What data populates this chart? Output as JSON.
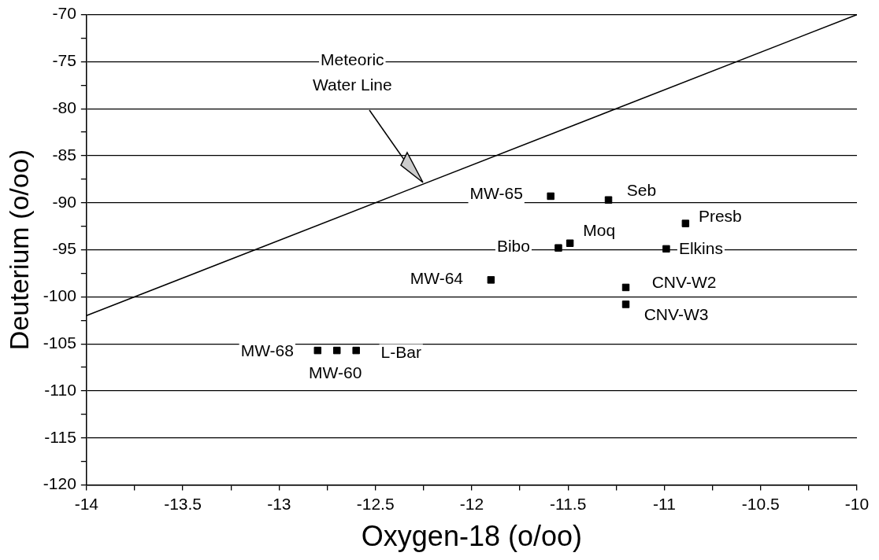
{
  "chart_data": {
    "type": "scatter",
    "xlabel": "Oxygen-18 (o/oo)",
    "ylabel": "Deuterium (o/oo)",
    "xlim": [
      -14,
      -10
    ],
    "xticks": [
      -14,
      {
        "value": -13.75,
        "label": null
      },
      -13.5,
      {
        "value": -13.25,
        "label": null
      },
      -13,
      {
        "value": -12.75,
        "label": null
      },
      -12.5,
      {
        "value": -12.25,
        "label": null
      },
      -12,
      {
        "value": -11.75,
        "label": null
      },
      -11.5,
      {
        "value": -11.25,
        "label": null
      },
      -11,
      {
        "value": -10.75,
        "label": null
      },
      -10.5,
      {
        "value": -10.25,
        "label": null
      },
      -10
    ],
    "ylim": [
      -120,
      -70
    ],
    "yticks": [
      -120,
      {
        "value": -117.5,
        "label": null
      },
      -115,
      {
        "value": -112.5,
        "label": null
      },
      -110,
      {
        "value": -107.5,
        "label": null
      },
      -105,
      {
        "value": -102.5,
        "label": null
      },
      -100,
      {
        "value": -97.5,
        "label": null
      },
      -95,
      {
        "value": -92.5,
        "label": null
      },
      -90,
      {
        "value": -87.5,
        "label": null
      },
      -85,
      {
        "value": -82.5,
        "label": null
      },
      -80,
      {
        "value": -77.5,
        "label": null
      },
      -75,
      {
        "value": -72.5,
        "label": null
      },
      -70
    ],
    "grid": "y",
    "legend": false,
    "marker": "square",
    "series": [
      {
        "name": "MW-65",
        "color": "#000000",
        "x": [
          -11.59
        ],
        "values": [
          -89.3
        ]
      },
      {
        "name": "Seb",
        "color": "#000000",
        "x": [
          -11.29
        ],
        "values": [
          -89.7
        ]
      },
      {
        "name": "Presb",
        "color": "#000000",
        "x": [
          -10.89
        ],
        "values": [
          -92.2
        ]
      },
      {
        "name": "Moq",
        "color": "#000000",
        "x": [
          -11.49
        ],
        "values": [
          -94.3
        ]
      },
      {
        "name": "Bibo",
        "color": "#000000",
        "x": [
          -11.55
        ],
        "values": [
          -94.8
        ]
      },
      {
        "name": "Elkins",
        "color": "#000000",
        "x": [
          -10.99
        ],
        "values": [
          -94.9
        ]
      },
      {
        "name": "MW-64",
        "color": "#000000",
        "x": [
          -11.9
        ],
        "values": [
          -98.2
        ]
      },
      {
        "name": "CNV-W2",
        "color": "#000000",
        "x": [
          -11.2
        ],
        "values": [
          -99
        ]
      },
      {
        "name": "CNV-W3",
        "color": "#000000",
        "x": [
          -11.2
        ],
        "values": [
          -100.8
        ]
      },
      {
        "name": "MW-68",
        "color": "#000000",
        "x": [
          -12.8
        ],
        "values": [
          -105.7
        ]
      },
      {
        "name": "MW-60",
        "color": "#000000",
        "x": [
          -12.7
        ],
        "values": [
          -105.7
        ]
      },
      {
        "name": "L-Bar",
        "color": "#000000",
        "x": [
          -12.6
        ],
        "values": [
          -105.7
        ]
      },
      {
        "type": "line",
        "color": "#000000",
        "marker": "none",
        "x": [
          -14,
          -10
        ],
        "values": [
          -102,
          -70
        ]
      }
    ],
    "annotations": [
      "Meteoric Water Line"
    ]
  }
}
